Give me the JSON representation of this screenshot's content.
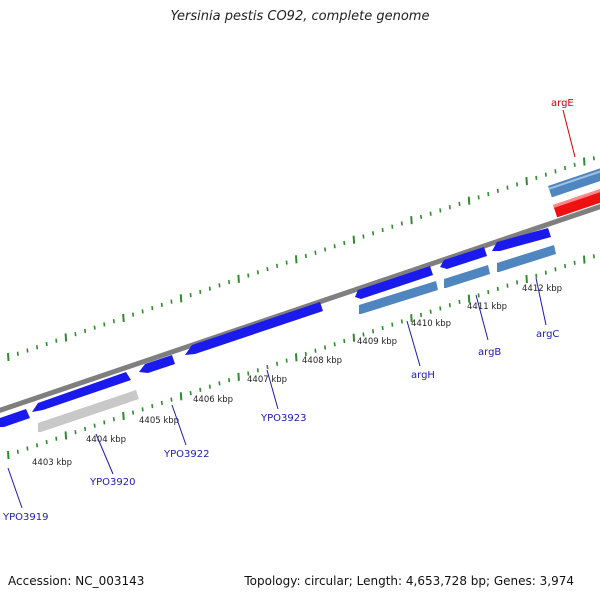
{
  "title": "Yersinia pestis CO92, complete genome",
  "footer": {
    "accession": "Accession: NC_003143",
    "summary": "Topology: circular; Length: 4,653,728 bp; Genes: 3,974"
  },
  "ticks": [
    "4403 kbp",
    "4404 kbp",
    "4405 kbp",
    "4406 kbp",
    "4407 kbp",
    "4408 kbp",
    "4409 kbp",
    "4410 kbp",
    "4411 kbp",
    "4412 kbp"
  ],
  "gene_labels": [
    {
      "name": "argE",
      "strand": "forward"
    },
    {
      "name": "YPO3919",
      "strand": "reverse"
    },
    {
      "name": "YPO3920",
      "strand": "reverse"
    },
    {
      "name": "YPO3922",
      "strand": "reverse"
    },
    {
      "name": "YPO3923",
      "strand": "reverse"
    },
    {
      "name": "argH",
      "strand": "reverse"
    },
    {
      "name": "argB",
      "strand": "reverse"
    },
    {
      "name": "argC",
      "strand": "reverse"
    }
  ],
  "colors": {
    "cds": "#1a1aee",
    "cds_named": "#4f86bf",
    "highlight": "#ee1111",
    "pseudo": "#c8c8c8",
    "backbone": "#888888",
    "tick": "#2e8b2e",
    "label_blue": "#1a1ab0",
    "label_red": "#cc0000"
  }
}
